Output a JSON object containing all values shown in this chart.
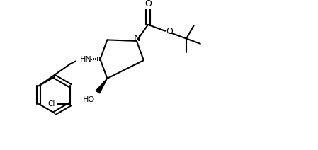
{
  "background_color": "#ffffff",
  "line_color": "#000000",
  "line_width": 1.5,
  "figsize": [
    4.49,
    2.12
  ],
  "dpi": 100,
  "xlim": [
    0,
    9.0
  ],
  "ylim": [
    0,
    4.24
  ]
}
